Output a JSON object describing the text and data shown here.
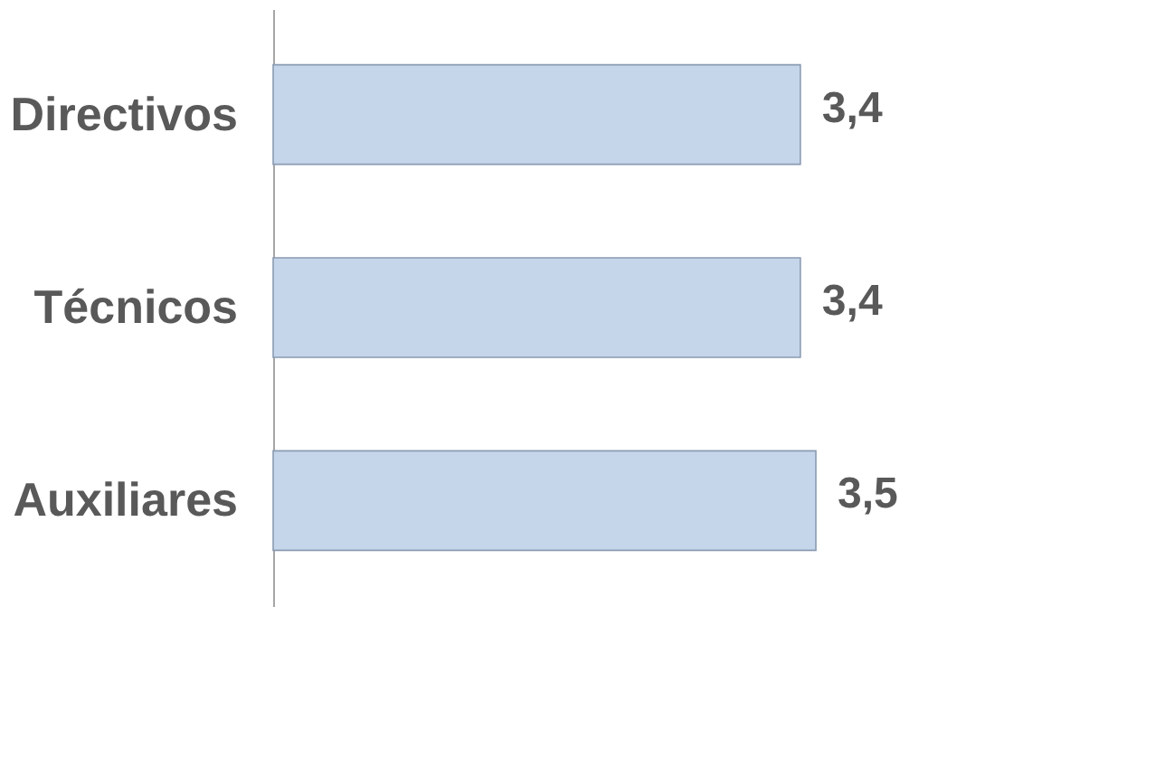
{
  "chart_data": {
    "type": "bar",
    "orientation": "horizontal",
    "categories": [
      "Directivos",
      "Técnicos",
      "Auxiliares"
    ],
    "values": [
      3.4,
      3.4,
      3.5
    ],
    "color": "#c6d6ea",
    "data_labels": true,
    "value_labels": [
      "3,4",
      "3,4",
      "3,5"
    ],
    "grid": false
  }
}
